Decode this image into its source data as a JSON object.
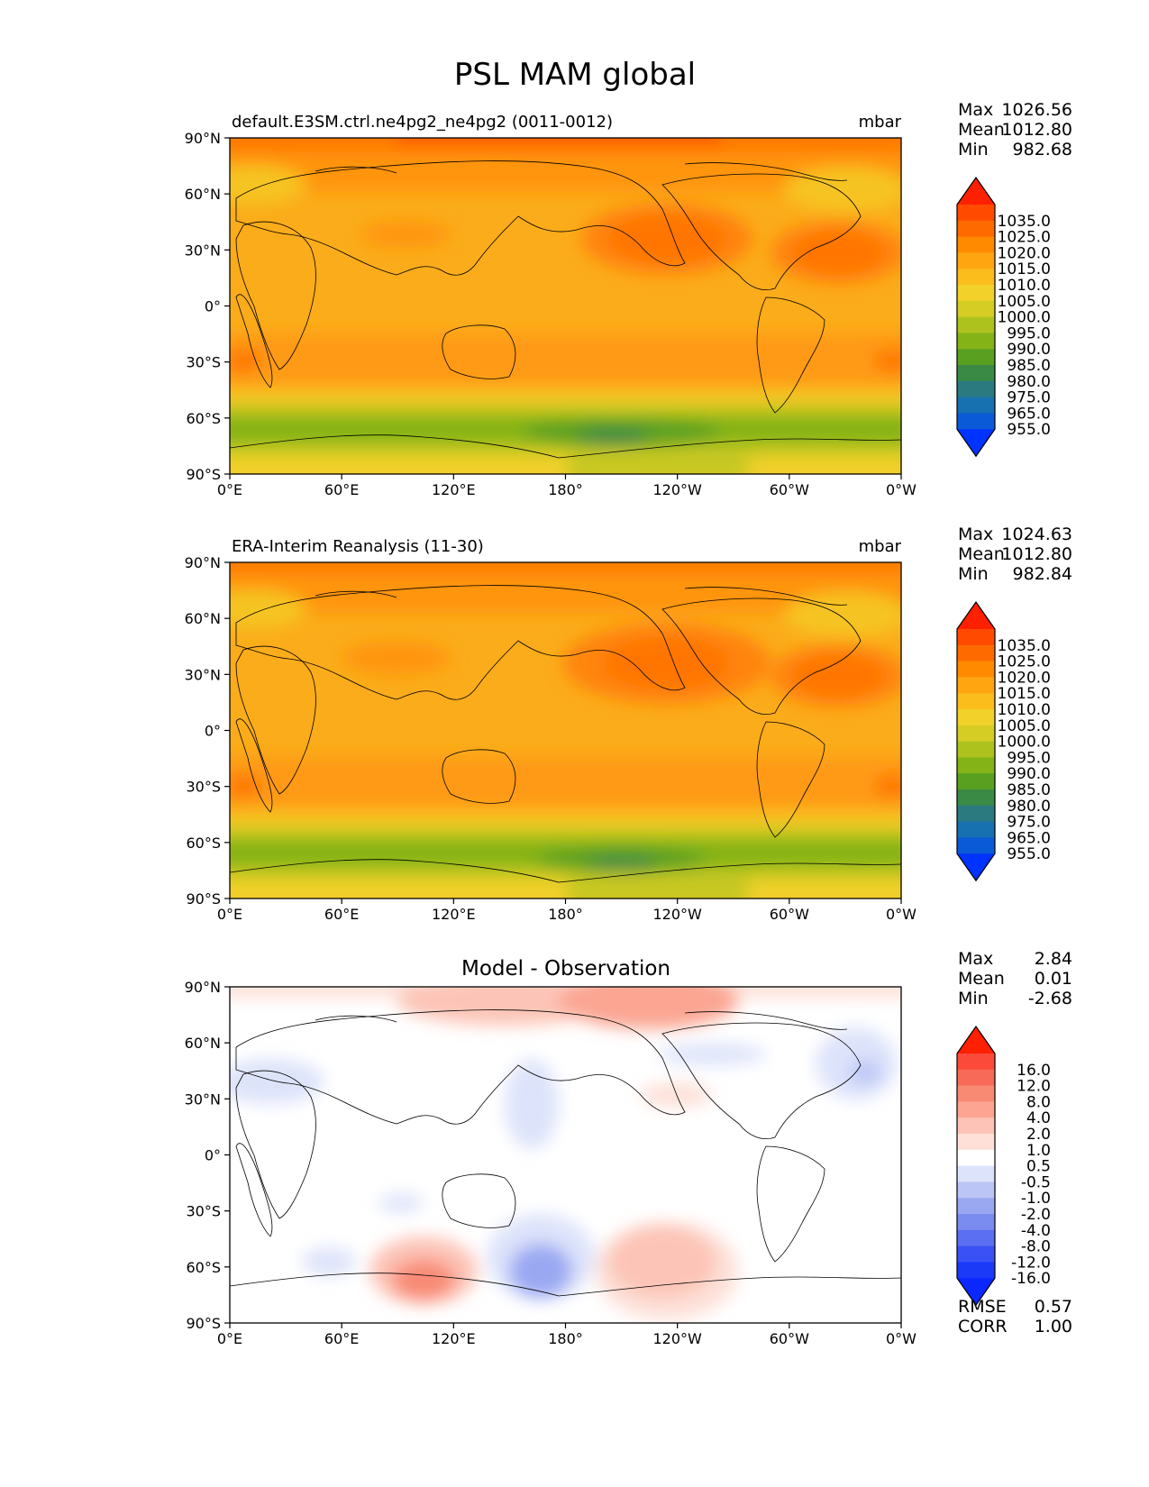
{
  "figure_title": "PSL MAM global",
  "chart_data": [
    {
      "type": "heatmap",
      "title": "default.E3SM.ctrl.ne4pg2_ne4pg2 (0011-0012)",
      "units": "mbar",
      "stats": [
        {
          "label": "Max",
          "value": "1026.56"
        },
        {
          "label": "Mean",
          "value": "1012.80"
        },
        {
          "label": "Min",
          "value": "982.68"
        }
      ],
      "colorbar": {
        "levels": [
          "1035.0",
          "1025.0",
          "1020.0",
          "1015.0",
          "1010.0",
          "1005.0",
          "1000.0",
          "995.0",
          "990.0",
          "985.0",
          "980.0",
          "975.0",
          "965.0",
          "955.0"
        ],
        "colors": [
          "#ff2000",
          "#ff4a00",
          "#ff6a00",
          "#ff8a00",
          "#ffa510",
          "#fbbd1c",
          "#f2d22a",
          "#d5cd24",
          "#aec21e",
          "#84b318",
          "#5aa020",
          "#3a8a46",
          "#2a7a80",
          "#1770b0",
          "#0a5ad8",
          "#0033ff"
        ]
      },
      "x_ticks": [
        "0°E",
        "60°E",
        "120°E",
        "180°",
        "120°W",
        "60°W",
        "0°W"
      ],
      "y_ticks": [
        "90°N",
        "60°N",
        "30°N",
        "0°",
        "30°S",
        "60°S",
        "90°S"
      ]
    },
    {
      "type": "heatmap",
      "title": "ERA-Interim Reanalysis (11-30)",
      "units": "mbar",
      "stats": [
        {
          "label": "Max",
          "value": "1024.63"
        },
        {
          "label": "Mean",
          "value": "1012.80"
        },
        {
          "label": "Min",
          "value": "982.84"
        }
      ],
      "colorbar": {
        "levels": [
          "1035.0",
          "1025.0",
          "1020.0",
          "1015.0",
          "1010.0",
          "1005.0",
          "1000.0",
          "995.0",
          "990.0",
          "985.0",
          "980.0",
          "975.0",
          "965.0",
          "955.0"
        ],
        "colors": [
          "#ff2000",
          "#ff4a00",
          "#ff6a00",
          "#ff8a00",
          "#ffa510",
          "#fbbd1c",
          "#f2d22a",
          "#d5cd24",
          "#aec21e",
          "#84b318",
          "#5aa020",
          "#3a8a46",
          "#2a7a80",
          "#1770b0",
          "#0a5ad8",
          "#0033ff"
        ]
      },
      "x_ticks": [
        "0°E",
        "60°E",
        "120°E",
        "180°",
        "120°W",
        "60°W",
        "0°W"
      ],
      "y_ticks": [
        "90°N",
        "60°N",
        "30°N",
        "0°",
        "30°S",
        "60°S",
        "90°S"
      ]
    },
    {
      "type": "heatmap",
      "title": "Model - Observation",
      "units": "",
      "stats": [
        {
          "label": "Max",
          "value": "2.84"
        },
        {
          "label": "Mean",
          "value": "0.01"
        },
        {
          "label": "Min",
          "value": "-2.68"
        }
      ],
      "colorbar": {
        "levels": [
          "16.0",
          "12.0",
          "8.0",
          "4.0",
          "2.0",
          "1.0",
          "0.5",
          "-0.5",
          "-1.0",
          "-2.0",
          "-4.0",
          "-8.0",
          "-12.0",
          "-16.0"
        ],
        "colors": [
          "#ff2000",
          "#fc4a3a",
          "#f86a58",
          "#f88a74",
          "#fba592",
          "#fdc3b6",
          "#fee0d8",
          "#ffffff",
          "#dde3fa",
          "#bcc6f6",
          "#9aa8f2",
          "#7a8cf0",
          "#5a6ff2",
          "#3a52f5",
          "#1a3af8",
          "#0a28ff"
        ]
      },
      "x_ticks": [
        "0°E",
        "60°E",
        "120°E",
        "180°",
        "120°W",
        "60°W",
        "0°W"
      ],
      "y_ticks": [
        "90°N",
        "60°N",
        "30°N",
        "0°",
        "30°S",
        "60°S",
        "90°S"
      ],
      "metrics": [
        {
          "label": "RMSE",
          "value": "0.57"
        },
        {
          "label": "CORR",
          "value": "1.00"
        }
      ]
    }
  ]
}
